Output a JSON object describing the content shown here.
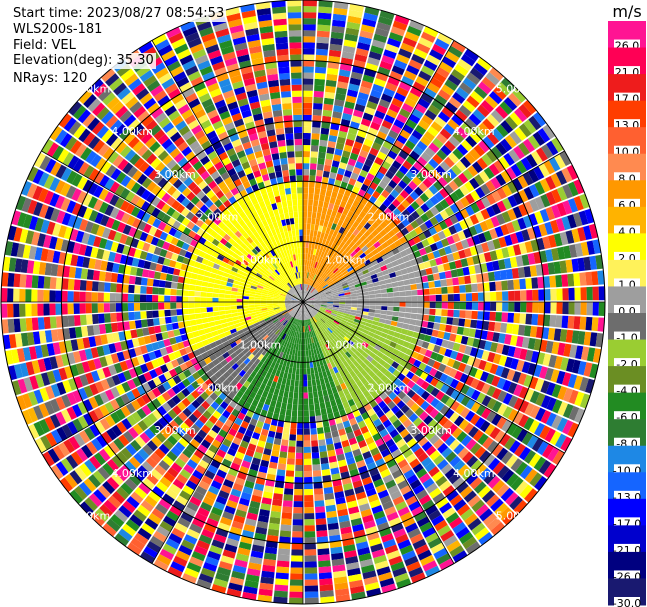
{
  "header": {
    "start_time": "Start time: 2023/08/27 08:54:53",
    "instrument": "WLS200s-181",
    "field": "Field: VEL",
    "elevation": "Elevation(deg): 35.30",
    "nrays": "NRays: 120"
  },
  "chart_data": {
    "type": "heatmap",
    "projection": "polar-ppi",
    "title": "",
    "n_rays": 120,
    "range_rings_km": [
      1.0,
      2.0,
      3.0,
      4.0,
      5.0
    ],
    "range_ring_labels": [
      "1.00km",
      "2.00km",
      "3.00km",
      "4.00km",
      "5.00km"
    ],
    "max_range_km": 5.0,
    "near_field_km": 2.0,
    "near_field_pattern": {
      "ne_sector_ms": 6.0,
      "nw_sector_ms": 2.0,
      "west_sector_ms": 2.0,
      "east_gray_band_ms": 0.0,
      "se_sector_ms": -2.0,
      "south_sector_ms": -6.0,
      "sw_sector_ms": -1.0,
      "center_ms": 0.0
    },
    "far_field": "noise",
    "colorbar": {
      "unit": "m/s",
      "tick_labels": [
        "26.0",
        "21.0",
        "17.0",
        "13.0",
        "10.0",
        "8.0",
        "6.0",
        "4.0",
        "2.0",
        "1.0",
        "0.0",
        "-1.0",
        "-2.0",
        "-4.0",
        "-6.0",
        "-8.0",
        "-10.0",
        "-13.0",
        "-17.0",
        "-21.0",
        "-26.0",
        "-30.0"
      ],
      "colors": [
        "#ff1493",
        "#ff0055",
        "#ee1c1c",
        "#ff3d00",
        "#ff6030",
        "#ff8a50",
        "#ff9800",
        "#ffb300",
        "#ffff00",
        "#fff25a",
        "#9e9e9e",
        "#6d6d6d",
        "#9acd32",
        "#6b8e23",
        "#228b22",
        "#2e7d32",
        "#1e88e5",
        "#1565ff",
        "#0000ff",
        "#0000cd",
        "#000080",
        "#191970"
      ]
    }
  }
}
